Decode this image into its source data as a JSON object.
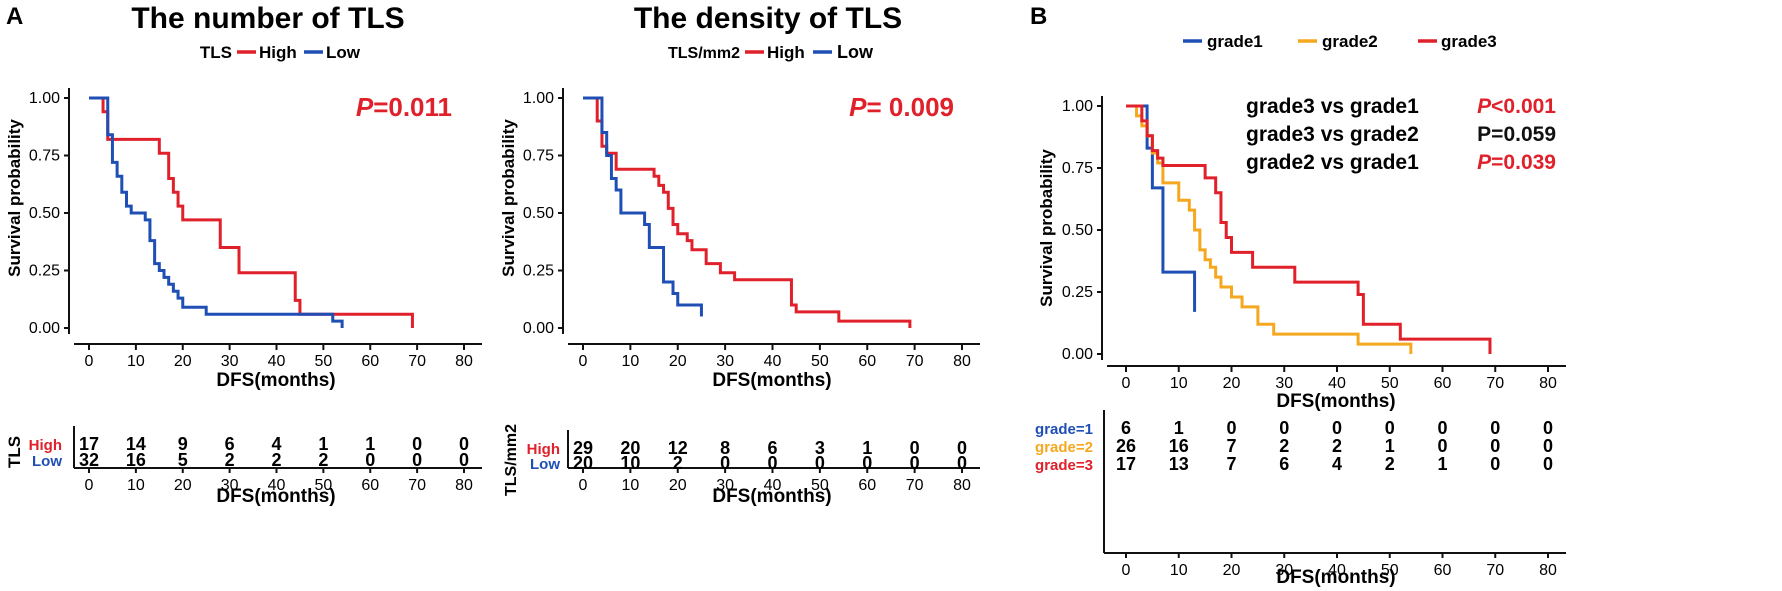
{
  "colors": {
    "red": "#e0202a",
    "blue": "#1f4fb5",
    "orange": "#f5a81f",
    "black": "#111111"
  },
  "panel_labels": [
    "A",
    "B"
  ],
  "chart_data": [
    {
      "type": "line",
      "id": "p1",
      "step": true,
      "title": "The number of TLS",
      "legend_title": "TLS",
      "xlabel": "DFS(months)",
      "ylabel": "Survival probability",
      "xlim": [
        0,
        80
      ],
      "ylim": [
        0,
        1
      ],
      "xticks": [
        "0",
        "10",
        "20",
        "30",
        "40",
        "50",
        "60",
        "70",
        "80"
      ],
      "yticks": [
        "0.00",
        "0.25",
        "0.50",
        "0.75",
        "1.00"
      ],
      "pvalue": {
        "prefix": "P",
        "text": "=0.011"
      },
      "series": [
        {
          "name": "High",
          "color": "red",
          "x": [
            0,
            3,
            4,
            15,
            17,
            18,
            19,
            20,
            28,
            32,
            44,
            45,
            69
          ],
          "y": [
            1,
            0.94,
            0.82,
            0.76,
            0.65,
            0.59,
            0.53,
            0.47,
            0.35,
            0.24,
            0.12,
            0.06,
            0
          ]
        },
        {
          "name": "Low",
          "color": "blue",
          "x": [
            0,
            4,
            5,
            6,
            7,
            8,
            9,
            12,
            13,
            14,
            15,
            16,
            17,
            18,
            19,
            20,
            21,
            22,
            25,
            52,
            54
          ],
          "y": [
            1,
            0.84,
            0.72,
            0.66,
            0.59,
            0.53,
            0.5,
            0.47,
            0.38,
            0.28,
            0.25,
            0.22,
            0.19,
            0.16,
            0.13,
            0.09,
            0.09,
            0.09,
            0.06,
            0.03,
            0
          ]
        }
      ],
      "risk_table": {
        "ylabel": "TLS",
        "xlabel": "DFS(months)",
        "rows": [
          {
            "label": "High",
            "color": "red",
            "values": [
              "17",
              "14",
              "9",
              "6",
              "4",
              "1",
              "1",
              "0",
              "0"
            ]
          },
          {
            "label": "Low",
            "color": "blue",
            "values": [
              "32",
              "16",
              "5",
              "2",
              "2",
              "2",
              "0",
              "0",
              "0"
            ]
          }
        ]
      }
    },
    {
      "type": "line",
      "id": "p2",
      "step": true,
      "title": "The density of TLS",
      "legend_title": "TLS/mm2",
      "xlabel": "DFS(months)",
      "ylabel": "Survival probability",
      "xlim": [
        0,
        80
      ],
      "ylim": [
        0,
        1
      ],
      "xticks": [
        "0",
        "10",
        "20",
        "30",
        "40",
        "50",
        "60",
        "70",
        "80"
      ],
      "yticks": [
        "0.00",
        "0.25",
        "0.50",
        "0.75",
        "1.00"
      ],
      "pvalue": {
        "prefix": "P",
        "text": "= 0.009"
      },
      "series": [
        {
          "name": "High",
          "color": "red",
          "x": [
            0,
            3,
            4,
            5,
            7,
            15,
            16,
            17,
            18,
            19,
            20,
            22,
            23,
            24,
            26,
            29,
            32,
            37,
            44,
            45,
            54,
            69
          ],
          "y": [
            1,
            0.9,
            0.79,
            0.76,
            0.69,
            0.66,
            0.62,
            0.59,
            0.52,
            0.45,
            0.41,
            0.38,
            0.34,
            0.34,
            0.28,
            0.24,
            0.21,
            0.21,
            0.1,
            0.07,
            0.03,
            0
          ]
        },
        {
          "name": "Low",
          "color": "blue",
          "x": [
            0,
            4,
            5,
            6,
            7,
            8,
            13,
            14,
            17,
            19,
            20,
            25
          ],
          "y": [
            1,
            0.85,
            0.75,
            0.65,
            0.6,
            0.5,
            0.45,
            0.35,
            0.2,
            0.15,
            0.1,
            0.05
          ]
        }
      ],
      "risk_table": {
        "ylabel": "TLS/mm2",
        "xlabel": "DFS(months)",
        "rows": [
          {
            "label": "High",
            "color": "red",
            "values": [
              "29",
              "20",
              "12",
              "8",
              "6",
              "3",
              "1",
              "0",
              "0"
            ]
          },
          {
            "label": "Low",
            "color": "blue",
            "values": [
              "20",
              "10",
              "2",
              "0",
              "0",
              "0",
              "0",
              "0",
              "0"
            ]
          }
        ]
      }
    },
    {
      "type": "line",
      "id": "p3",
      "step": true,
      "title": "",
      "xlabel": "DFS(months)",
      "ylabel": "Survival probability",
      "xlim": [
        0,
        80
      ],
      "ylim": [
        0,
        1
      ],
      "xticks": [
        "0",
        "10",
        "20",
        "30",
        "40",
        "50",
        "60",
        "70",
        "80"
      ],
      "yticks": [
        "0.00",
        "0.25",
        "0.50",
        "0.75",
        "1.00"
      ],
      "comparisons": [
        {
          "label": "grade3 vs grade1",
          "p_prefix": "P",
          "p_text": "<0.001",
          "color": "red",
          "italic": true
        },
        {
          "label": "grade3 vs grade2",
          "p_prefix": "",
          "p_text": "P=0.059",
          "color": "black",
          "italic": false
        },
        {
          "label": "grade2 vs grade1",
          "p_prefix": "P",
          "p_text": "=0.039",
          "color": "red",
          "italic": true
        }
      ],
      "series": [
        {
          "name": "grade1",
          "color": "blue",
          "x": [
            0,
            4,
            5,
            7,
            13
          ],
          "y": [
            1,
            0.83,
            0.67,
            0.33,
            0.17
          ]
        },
        {
          "name": "grade2",
          "color": "orange",
          "x": [
            0,
            2,
            3,
            4,
            5,
            6,
            7,
            10,
            12,
            13,
            14,
            15,
            16,
            17,
            18,
            20,
            22,
            25,
            28,
            44,
            54
          ],
          "y": [
            1,
            0.96,
            0.92,
            0.88,
            0.81,
            0.77,
            0.69,
            0.62,
            0.58,
            0.5,
            0.42,
            0.38,
            0.35,
            0.31,
            0.27,
            0.23,
            0.19,
            0.12,
            0.08,
            0.04,
            0
          ]
        },
        {
          "name": "grade3",
          "color": "red",
          "x": [
            0,
            3,
            4,
            5,
            6,
            7,
            15,
            17,
            18,
            19,
            20,
            24,
            28,
            32,
            44,
            45,
            52,
            69
          ],
          "y": [
            1,
            0.94,
            0.88,
            0.82,
            0.79,
            0.76,
            0.71,
            0.65,
            0.53,
            0.47,
            0.41,
            0.35,
            0.35,
            0.29,
            0.24,
            0.12,
            0.06,
            0
          ]
        }
      ],
      "risk_table": {
        "ylabel": "",
        "xlabel": "DFS(months)",
        "rows": [
          {
            "label": "grade=1",
            "color": "blue",
            "values": [
              "6",
              "1",
              "0",
              "0",
              "0",
              "0",
              "0",
              "0",
              "0"
            ]
          },
          {
            "label": "grade=2",
            "color": "orange",
            "values": [
              "26",
              "16",
              "7",
              "2",
              "2",
              "1",
              "0",
              "0",
              "0"
            ]
          },
          {
            "label": "grade=3",
            "color": "red",
            "values": [
              "17",
              "13",
              "7",
              "6",
              "4",
              "2",
              "1",
              "0",
              "0"
            ]
          }
        ]
      }
    }
  ]
}
